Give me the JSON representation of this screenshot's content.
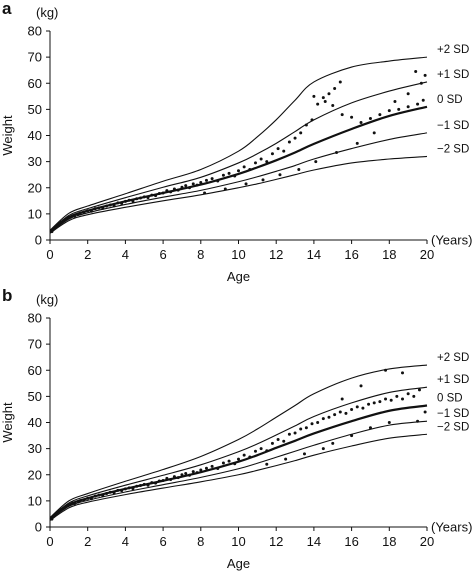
{
  "chart_data": [
    {
      "type": "scatter",
      "panel": "a",
      "ylabel": "Weight",
      "yunit": "(kg)",
      "xlabel": "Age",
      "xunit": "(Years)",
      "xlim": [
        0,
        20
      ],
      "ylim": [
        0,
        80
      ],
      "xticks": [
        0,
        2,
        4,
        6,
        8,
        10,
        12,
        14,
        16,
        18,
        20
      ],
      "yticks": [
        0,
        10,
        20,
        30,
        40,
        50,
        60,
        70,
        80
      ],
      "grid": false,
      "reference_curves": [
        {
          "label": "+2 SD",
          "x": [
            0,
            1,
            2,
            4,
            6,
            8,
            10,
            11,
            12,
            13,
            14,
            16,
            18,
            20
          ],
          "y": [
            3.7,
            10.2,
            13,
            17.7,
            22.5,
            27,
            34,
            39.5,
            46,
            53.5,
            60.5,
            66.2,
            68.5,
            70
          ]
        },
        {
          "label": "+1 SD",
          "x": [
            0,
            1,
            2,
            4,
            6,
            8,
            10,
            11,
            12,
            13,
            14,
            16,
            18,
            20
          ],
          "y": [
            3.4,
            9.4,
            12,
            16.2,
            20.2,
            24,
            29.5,
            33,
            37,
            41.5,
            46,
            52.5,
            57,
            60.5
          ]
        },
        {
          "label": "0 SD",
          "x": [
            0,
            1,
            2,
            4,
            6,
            8,
            10,
            11,
            12,
            13,
            14,
            16,
            18,
            20
          ],
          "y": [
            3.1,
            8.7,
            11.2,
            14.8,
            18,
            21.2,
            25.3,
            27.8,
            30.5,
            33.5,
            36.8,
            42.5,
            47.5,
            51
          ]
        },
        {
          "label": "−1 SD",
          "x": [
            0,
            1,
            2,
            4,
            6,
            8,
            10,
            11,
            12,
            13,
            14,
            16,
            18,
            20
          ],
          "y": [
            2.9,
            8,
            10.4,
            13.6,
            16.4,
            19,
            22.3,
            24.2,
            26.3,
            28.5,
            31,
            35,
            38.5,
            41
          ]
        },
        {
          "label": "−2 SD",
          "x": [
            0,
            1,
            2,
            4,
            6,
            8,
            10,
            11,
            12,
            13,
            14,
            16,
            18,
            20
          ],
          "y": [
            2.6,
            7.4,
            9.7,
            12.5,
            15,
            17.3,
            20,
            21.5,
            23.2,
            25,
            26.8,
            29.5,
            31,
            32
          ]
        }
      ],
      "scatter_points": [
        [
          0.1,
          3.2
        ],
        [
          0.2,
          4.3
        ],
        [
          0.3,
          5.1
        ],
        [
          0.4,
          5.8
        ],
        [
          0.5,
          6.4
        ],
        [
          0.6,
          6.9
        ],
        [
          0.7,
          7.3
        ],
        [
          0.8,
          7.7
        ],
        [
          0.9,
          8.1
        ],
        [
          1.0,
          8.6
        ],
        [
          1.1,
          8.8
        ],
        [
          1.2,
          9.3
        ],
        [
          1.3,
          9.1
        ],
        [
          1.5,
          9.8
        ],
        [
          1.6,
          10.3
        ],
        [
          1.8,
          10.6
        ],
        [
          2.0,
          11.2
        ],
        [
          2.2,
          11.0
        ],
        [
          2.4,
          12.0
        ],
        [
          2.6,
          12.3
        ],
        [
          2.8,
          12.1
        ],
        [
          3.0,
          13.0
        ],
        [
          3.2,
          13.4
        ],
        [
          3.4,
          13.1
        ],
        [
          3.6,
          14.2
        ],
        [
          3.8,
          14.0
        ],
        [
          4.0,
          14.8
        ],
        [
          4.2,
          15.2
        ],
        [
          4.4,
          14.9
        ],
        [
          4.6,
          15.8
        ],
        [
          4.8,
          16.1
        ],
        [
          5.0,
          16.5
        ],
        [
          5.2,
          16.2
        ],
        [
          5.4,
          17.2
        ],
        [
          5.6,
          17.0
        ],
        [
          5.8,
          17.8
        ],
        [
          6.0,
          18.0
        ],
        [
          6.2,
          18.9
        ],
        [
          6.4,
          18.4
        ],
        [
          6.6,
          19.5
        ],
        [
          6.8,
          19.1
        ],
        [
          7.0,
          20.2
        ],
        [
          7.2,
          20.8
        ],
        [
          7.4,
          20.0
        ],
        [
          7.6,
          21.5
        ],
        [
          7.8,
          21.0
        ],
        [
          8.0,
          22.0
        ],
        [
          8.3,
          22.8
        ],
        [
          8.6,
          23.5
        ],
        [
          8.9,
          22.6
        ],
        [
          9.2,
          24.8
        ],
        [
          9.5,
          25.5
        ],
        [
          9.8,
          24.5
        ],
        [
          10.0,
          26.5
        ],
        [
          10.3,
          28.0
        ],
        [
          10.6,
          27.0
        ],
        [
          10.9,
          29.5
        ],
        [
          11.2,
          31.0
        ],
        [
          11.5,
          30.0
        ],
        [
          11.8,
          33.0
        ],
        [
          12.1,
          35.0
        ],
        [
          12.4,
          34.0
        ],
        [
          12.7,
          37.5
        ],
        [
          13.0,
          39.0
        ],
        [
          13.3,
          41.0
        ],
        [
          13.6,
          44.0
        ],
        [
          13.9,
          46.0
        ],
        [
          14.2,
          52.0
        ],
        [
          14.5,
          54.5
        ],
        [
          14.8,
          56.0
        ],
        [
          15.1,
          58.0
        ],
        [
          15.4,
          60.5
        ],
        [
          14.0,
          55.0
        ],
        [
          14.6,
          53.0
        ],
        [
          15.0,
          51.5
        ],
        [
          15.5,
          48.0
        ],
        [
          16.0,
          47.0
        ],
        [
          16.5,
          45.0
        ],
        [
          17.0,
          46.5
        ],
        [
          17.5,
          48.0
        ],
        [
          18.0,
          49.5
        ],
        [
          18.5,
          50.0
        ],
        [
          19.0,
          51.0
        ],
        [
          19.5,
          52.0
        ],
        [
          19.8,
          53.5
        ],
        [
          19.9,
          63.0
        ],
        [
          19.4,
          64.5
        ],
        [
          19.7,
          60.0
        ],
        [
          19.0,
          56.0
        ],
        [
          18.3,
          53.0
        ],
        [
          17.2,
          41.0
        ],
        [
          16.3,
          37.0
        ],
        [
          15.2,
          33.5
        ],
        [
          14.1,
          30.0
        ],
        [
          13.2,
          27.0
        ],
        [
          12.2,
          25.0
        ],
        [
          11.3,
          23.0
        ],
        [
          10.4,
          21.5
        ],
        [
          9.3,
          19.5
        ],
        [
          8.2,
          18.0
        ]
      ]
    },
    {
      "type": "scatter",
      "panel": "b",
      "ylabel": "Weight",
      "yunit": "(kg)",
      "xlabel": "Age",
      "xunit": "(Years)",
      "xlim": [
        0,
        20
      ],
      "ylim": [
        0,
        80
      ],
      "xticks": [
        0,
        2,
        4,
        6,
        8,
        10,
        12,
        14,
        16,
        18,
        20
      ],
      "yticks": [
        0,
        10,
        20,
        30,
        40,
        50,
        60,
        70,
        80
      ],
      "grid": false,
      "reference_curves": [
        {
          "label": "+2 SD",
          "x": [
            0,
            1,
            2,
            4,
            6,
            8,
            10,
            11,
            12,
            13,
            14,
            16,
            18,
            20
          ],
          "y": [
            3.6,
            10,
            12.8,
            17.5,
            22,
            27,
            33.5,
            37.5,
            42,
            46.5,
            51,
            57,
            60.5,
            62
          ]
        },
        {
          "label": "+1 SD",
          "x": [
            0,
            1,
            2,
            4,
            6,
            8,
            10,
            11,
            12,
            13,
            14,
            16,
            18,
            20
          ],
          "y": [
            3.3,
            9.2,
            11.9,
            16,
            19.8,
            23.8,
            28.8,
            31.8,
            35.2,
            38.7,
            42.3,
            47.5,
            51.5,
            53.5
          ]
        },
        {
          "label": "0 SD",
          "x": [
            0,
            1,
            2,
            4,
            6,
            8,
            10,
            11,
            12,
            13,
            14,
            16,
            18,
            20
          ],
          "y": [
            3.0,
            8.5,
            11,
            14.6,
            17.7,
            21,
            25,
            27.5,
            30.3,
            33,
            35.8,
            40.5,
            44.5,
            46.5
          ]
        },
        {
          "label": "−1 SD",
          "x": [
            0,
            1,
            2,
            4,
            6,
            8,
            10,
            11,
            12,
            13,
            14,
            16,
            18,
            20
          ],
          "y": [
            2.8,
            7.9,
            10.2,
            13.4,
            16.2,
            19,
            22.3,
            24.4,
            26.7,
            29,
            31.3,
            35.5,
            39,
            40.5
          ]
        },
        {
          "label": "−2 SD",
          "x": [
            0,
            1,
            2,
            4,
            6,
            8,
            10,
            11,
            12,
            13,
            14,
            16,
            18,
            20
          ],
          "y": [
            2.5,
            7.3,
            9.5,
            12.4,
            14.9,
            17.3,
            20,
            21.7,
            23.5,
            25.4,
            27.5,
            31,
            34,
            35.5
          ]
        }
      ],
      "scatter_points": [
        [
          0.1,
          3.0
        ],
        [
          0.2,
          4.1
        ],
        [
          0.3,
          4.9
        ],
        [
          0.4,
          5.6
        ],
        [
          0.5,
          6.2
        ],
        [
          0.6,
          6.7
        ],
        [
          0.7,
          7.1
        ],
        [
          0.8,
          7.5
        ],
        [
          0.9,
          8.0
        ],
        [
          1.0,
          8.4
        ],
        [
          1.1,
          8.7
        ],
        [
          1.2,
          9.2
        ],
        [
          1.3,
          9.0
        ],
        [
          1.5,
          9.6
        ],
        [
          1.6,
          10.1
        ],
        [
          1.8,
          10.4
        ],
        [
          2.0,
          11.0
        ],
        [
          2.2,
          10.8
        ],
        [
          2.4,
          11.8
        ],
        [
          2.6,
          12.2
        ],
        [
          2.8,
          12.0
        ],
        [
          3.0,
          12.8
        ],
        [
          3.2,
          13.3
        ],
        [
          3.4,
          13.0
        ],
        [
          3.6,
          14.0
        ],
        [
          3.8,
          13.9
        ],
        [
          4.0,
          14.6
        ],
        [
          4.2,
          15.0
        ],
        [
          4.4,
          14.7
        ],
        [
          4.6,
          15.6
        ],
        [
          4.8,
          15.9
        ],
        [
          5.0,
          16.3
        ],
        [
          5.2,
          16.0
        ],
        [
          5.4,
          17.0
        ],
        [
          5.6,
          16.8
        ],
        [
          5.8,
          17.6
        ],
        [
          6.0,
          17.8
        ],
        [
          6.2,
          18.6
        ],
        [
          6.4,
          18.2
        ],
        [
          6.6,
          19.3
        ],
        [
          6.8,
          18.9
        ],
        [
          7.0,
          20.0
        ],
        [
          7.2,
          20.5
        ],
        [
          7.4,
          19.8
        ],
        [
          7.6,
          21.2
        ],
        [
          7.8,
          20.8
        ],
        [
          8.0,
          21.8
        ],
        [
          8.3,
          22.5
        ],
        [
          8.6,
          23.2
        ],
        [
          8.9,
          22.4
        ],
        [
          9.2,
          24.5
        ],
        [
          9.5,
          25.2
        ],
        [
          9.8,
          24.2
        ],
        [
          10.0,
          26.0
        ],
        [
          10.3,
          27.5
        ],
        [
          10.6,
          26.8
        ],
        [
          10.9,
          29.0
        ],
        [
          11.2,
          30.0
        ],
        [
          11.5,
          29.2
        ],
        [
          11.8,
          32.0
        ],
        [
          12.1,
          33.5
        ],
        [
          12.4,
          32.8
        ],
        [
          12.7,
          35.5
        ],
        [
          13.0,
          36.0
        ],
        [
          13.3,
          37.5
        ],
        [
          13.6,
          38.0
        ],
        [
          13.9,
          39.5
        ],
        [
          14.2,
          40.0
        ],
        [
          14.5,
          41.5
        ],
        [
          14.8,
          42.0
        ],
        [
          15.1,
          43.0
        ],
        [
          15.4,
          44.0
        ],
        [
          15.7,
          43.5
        ],
        [
          16.0,
          45.0
        ],
        [
          16.3,
          46.0
        ],
        [
          16.6,
          45.5
        ],
        [
          16.9,
          47.0
        ],
        [
          17.2,
          47.5
        ],
        [
          17.5,
          48.0
        ],
        [
          17.8,
          49.0
        ],
        [
          18.1,
          48.5
        ],
        [
          18.4,
          50.0
        ],
        [
          18.7,
          49.0
        ],
        [
          19.0,
          51.0
        ],
        [
          19.3,
          50.0
        ],
        [
          19.6,
          52.5
        ],
        [
          19.9,
          44.0
        ],
        [
          17.8,
          60.0
        ],
        [
          18.7,
          59.0
        ],
        [
          16.5,
          54.0
        ],
        [
          15.5,
          49.0
        ],
        [
          14.5,
          30.0
        ],
        [
          13.5,
          28.0
        ],
        [
          12.5,
          26.0
        ],
        [
          11.5,
          24.0
        ],
        [
          17.0,
          38.0
        ],
        [
          18.0,
          40.0
        ],
        [
          19.5,
          40.5
        ],
        [
          16.0,
          35.0
        ],
        [
          15.0,
          32.0
        ]
      ]
    }
  ]
}
